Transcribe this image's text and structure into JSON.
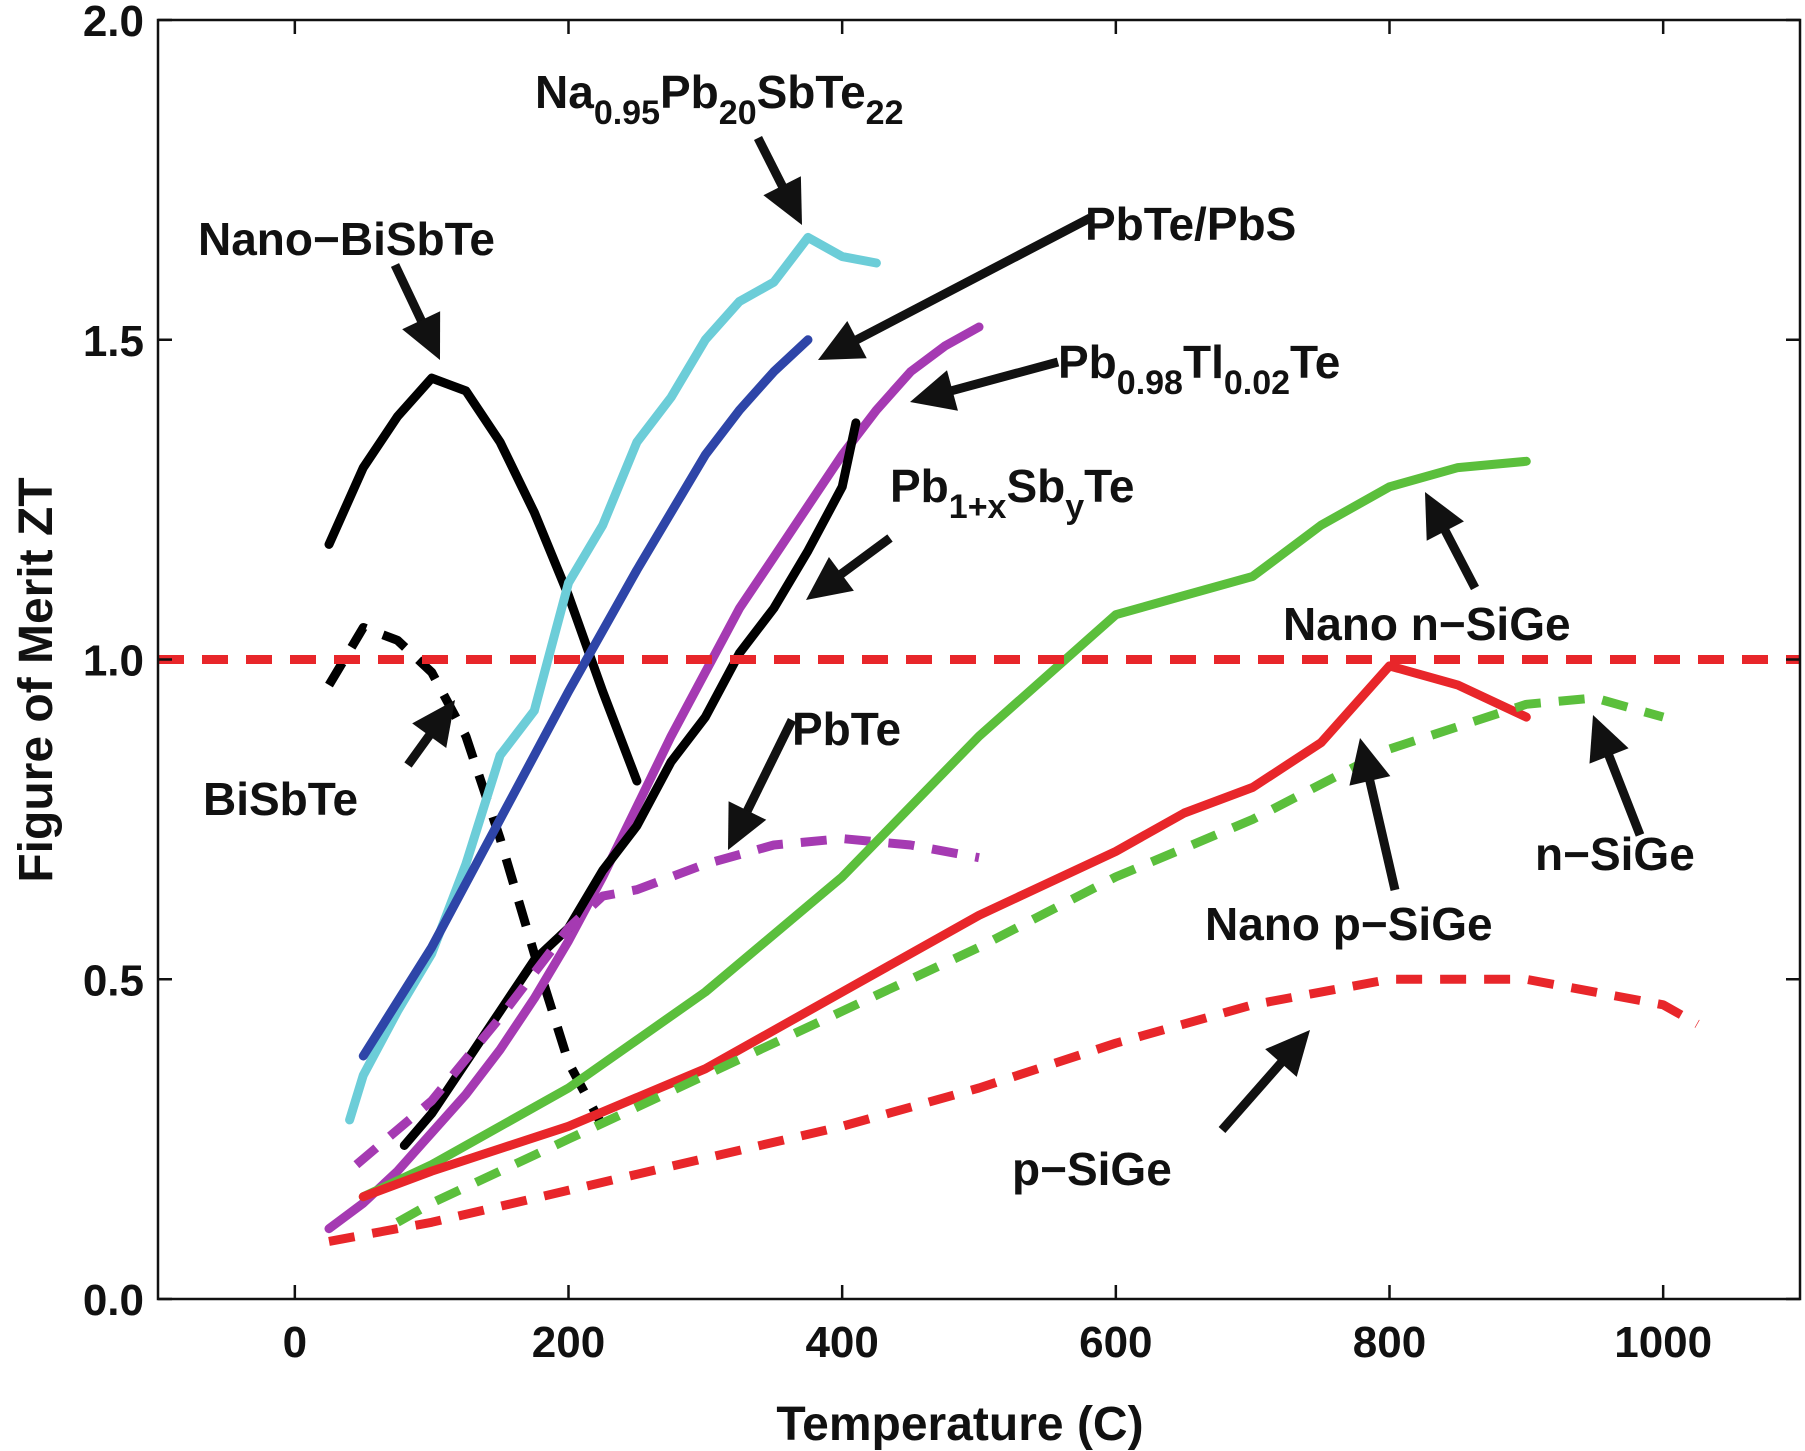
{
  "chart_data": {
    "type": "line",
    "title": "",
    "xlabel": "Temperature (C)",
    "ylabel": "Figure of Merit ZT",
    "xlim": [
      -100,
      1100
    ],
    "ylim": [
      0.0,
      2.0
    ],
    "xticks": [
      0,
      200,
      400,
      600,
      800,
      1000
    ],
    "yticks": [
      0.0,
      0.5,
      1.0,
      1.5,
      2.0
    ],
    "ytick_labels": [
      "0.0",
      "0.5",
      "1.0",
      "1.5",
      "2.0"
    ],
    "grid": false,
    "legend": "none",
    "reference_line": {
      "y": 1.0,
      "color": "#e8262a",
      "dashed": true
    },
    "series": [
      {
        "color": "#000000",
        "dashed": false,
        "x": [
          25,
          50,
          75,
          100,
          125,
          150,
          175,
          200,
          225,
          250
        ],
        "y": [
          1.18,
          1.3,
          1.38,
          1.44,
          1.42,
          1.34,
          1.23,
          1.1,
          0.95,
          0.81
        ]
      },
      {
        "color": "#000000",
        "dashed": true,
        "x": [
          25,
          50,
          75,
          100,
          125,
          150,
          175,
          200,
          225
        ],
        "y": [
          0.96,
          1.05,
          1.03,
          0.98,
          0.88,
          0.72,
          0.54,
          0.37,
          0.27
        ]
      },
      {
        "color": "#6ccdd8",
        "dashed": false,
        "x": [
          40,
          50,
          75,
          100,
          125,
          150,
          175,
          200,
          225,
          250,
          275,
          300,
          325,
          350,
          375,
          400,
          425
        ],
        "y": [
          0.28,
          0.35,
          0.45,
          0.54,
          0.68,
          0.85,
          0.92,
          1.12,
          1.21,
          1.34,
          1.41,
          1.5,
          1.56,
          1.59,
          1.66,
          1.63,
          1.62
        ]
      },
      {
        "color": "#2e45a8",
        "dashed": false,
        "x": [
          50,
          100,
          150,
          200,
          250,
          300,
          325,
          350,
          375
        ],
        "y": [
          0.38,
          0.55,
          0.75,
          0.95,
          1.14,
          1.32,
          1.39,
          1.45,
          1.5
        ]
      },
      {
        "color": "#a53ab2",
        "dashed": false,
        "x": [
          25,
          50,
          75,
          100,
          125,
          150,
          175,
          200,
          225,
          250,
          275,
          300,
          325,
          350,
          375,
          400,
          425,
          450,
          475,
          500
        ],
        "y": [
          0.11,
          0.15,
          0.2,
          0.26,
          0.32,
          0.39,
          0.47,
          0.56,
          0.66,
          0.77,
          0.88,
          0.98,
          1.08,
          1.16,
          1.24,
          1.32,
          1.39,
          1.45,
          1.49,
          1.52
        ]
      },
      {
        "color": "#000000",
        "dashed": false,
        "x": [
          80,
          100,
          125,
          150,
          175,
          200,
          225,
          250,
          275,
          300,
          325,
          350,
          375,
          400,
          410
        ],
        "y": [
          0.24,
          0.29,
          0.37,
          0.45,
          0.53,
          0.58,
          0.67,
          0.74,
          0.84,
          0.91,
          1.01,
          1.08,
          1.17,
          1.27,
          1.37
        ]
      },
      {
        "color": "#a53ab2",
        "dashed": true,
        "x": [
          45,
          100,
          150,
          200,
          225,
          250,
          300,
          350,
          400,
          450,
          500
        ],
        "y": [
          0.21,
          0.31,
          0.44,
          0.58,
          0.63,
          0.64,
          0.68,
          0.71,
          0.72,
          0.71,
          0.69
        ]
      },
      {
        "color": "#5bbf3c",
        "dashed": false,
        "x": [
          50,
          100,
          200,
          300,
          400,
          500,
          600,
          650,
          700,
          750,
          800,
          850,
          900
        ],
        "y": [
          0.16,
          0.21,
          0.33,
          0.48,
          0.66,
          0.88,
          1.07,
          1.1,
          1.13,
          1.21,
          1.27,
          1.3,
          1.31
        ]
      },
      {
        "color": "#e8262a",
        "dashed": false,
        "x": [
          50,
          100,
          200,
          300,
          400,
          500,
          600,
          650,
          700,
          750,
          800,
          850,
          900
        ],
        "y": [
          0.16,
          0.2,
          0.27,
          0.36,
          0.48,
          0.6,
          0.7,
          0.76,
          0.8,
          0.87,
          0.99,
          0.96,
          0.91
        ]
      },
      {
        "color": "#5bbf3c",
        "dashed": true,
        "x": [
          75,
          100,
          200,
          300,
          400,
          500,
          600,
          700,
          800,
          900,
          950,
          1000
        ],
        "y": [
          0.12,
          0.15,
          0.25,
          0.35,
          0.45,
          0.55,
          0.66,
          0.75,
          0.86,
          0.93,
          0.94,
          0.91
        ]
      },
      {
        "color": "#e8262a",
        "dashed": true,
        "x": [
          25,
          100,
          200,
          300,
          400,
          500,
          600,
          700,
          800,
          900,
          1000,
          1025
        ],
        "y": [
          0.09,
          0.12,
          0.17,
          0.22,
          0.27,
          0.33,
          0.4,
          0.46,
          0.5,
          0.5,
          0.46,
          0.43
        ]
      }
    ],
    "annotations": [
      {
        "name": "annot-na-pb-sb-te",
        "parts": [
          [
            "Na",
            ""
          ],
          [
            "0.95",
            "sub"
          ],
          [
            "Pb",
            ""
          ],
          [
            "20",
            "sub"
          ],
          [
            "SbTe",
            ""
          ],
          [
            "22",
            "sub"
          ]
        ]
      },
      {
        "name": "annot-nano-bisbte",
        "parts": [
          [
            "Nano−BiSbTe",
            ""
          ]
        ]
      },
      {
        "name": "annot-pbte-pbs",
        "parts": [
          [
            "PbTe/PbS",
            ""
          ]
        ]
      },
      {
        "name": "annot-pb-tl-te",
        "parts": [
          [
            "Pb",
            ""
          ],
          [
            "0.98",
            "sub"
          ],
          [
            "Tl",
            ""
          ],
          [
            "0.02",
            "sub"
          ],
          [
            "Te",
            ""
          ]
        ]
      },
      {
        "name": "annot-pb-sb-te",
        "parts": [
          [
            "Pb",
            ""
          ],
          [
            "1+x",
            "sub"
          ],
          [
            "Sb",
            ""
          ],
          [
            "y",
            "sub"
          ],
          [
            "Te",
            ""
          ]
        ]
      },
      {
        "name": "annot-nano-n-sige",
        "parts": [
          [
            "Nano n−SiGe",
            ""
          ]
        ]
      },
      {
        "name": "annot-bisbte",
        "parts": [
          [
            "BiSbTe",
            ""
          ]
        ]
      },
      {
        "name": "annot-pbte",
        "parts": [
          [
            "PbTe",
            ""
          ]
        ]
      },
      {
        "name": "annot-n-sige",
        "parts": [
          [
            "n−SiGe",
            ""
          ]
        ]
      },
      {
        "name": "annot-nano-p-sige",
        "parts": [
          [
            "Nano p−SiGe",
            ""
          ]
        ]
      },
      {
        "name": "annot-p-sige",
        "parts": [
          [
            "p−SiGe",
            ""
          ]
        ]
      }
    ]
  }
}
